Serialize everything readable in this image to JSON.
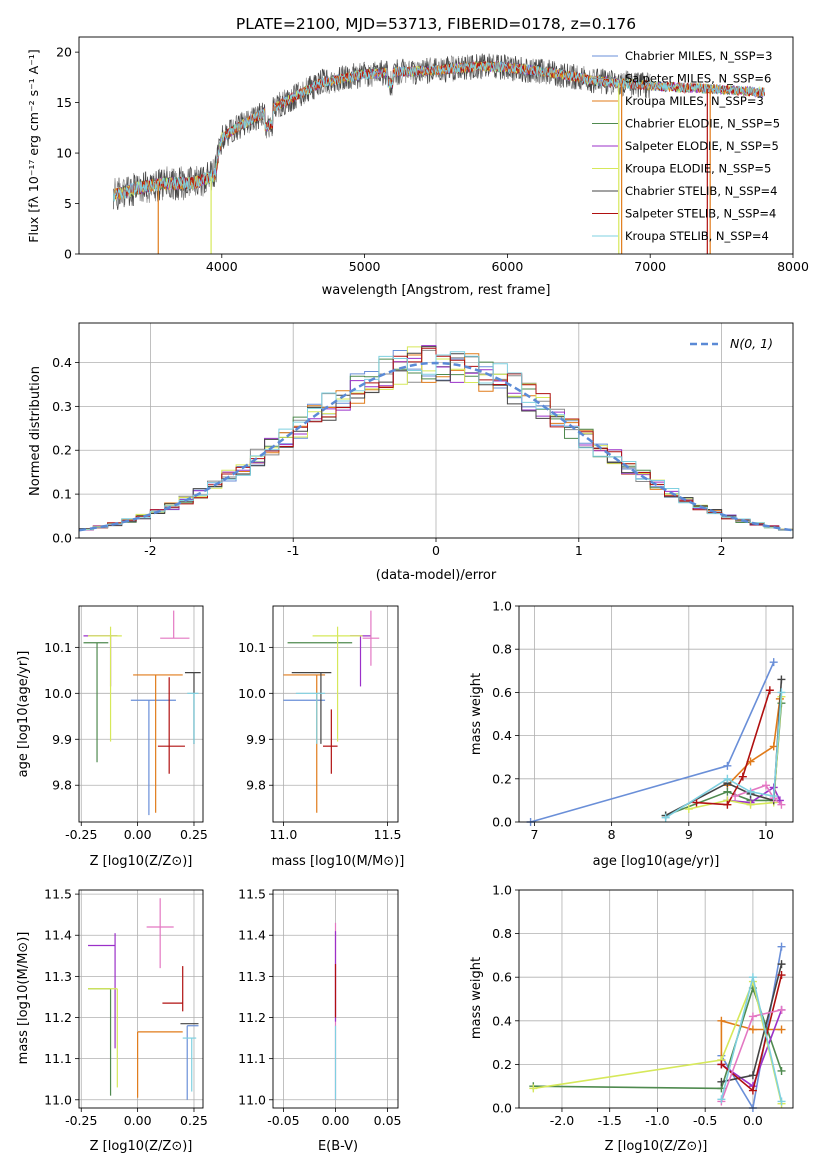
{
  "chart_data": [
    {
      "id": "spectrum",
      "type": "line",
      "title": "PLATE=2100, MJD=53713, FIBERID=0178, z=0.176",
      "xlabel": "wavelength [Angstrom, rest frame]",
      "ylabel": "Flux [fλ 10⁻¹⁷ erg cm⁻² s⁻¹ A⁻¹]",
      "xlim": [
        3000,
        8000
      ],
      "ylim": [
        0,
        21.5
      ],
      "xticks": [
        4000,
        5000,
        6000,
        7000,
        8000
      ],
      "yticks": [
        0,
        5,
        10,
        15,
        20
      ],
      "grid": false,
      "legend_position": "top-right",
      "series": [
        {
          "name": "Chabrier MILES, N_SSP=3",
          "color": "#6a8fd8"
        },
        {
          "name": "Salpeter MILES, N_SSP=6",
          "color": "#8b8b8b"
        },
        {
          "name": "Kroupa MILES, N_SSP=3",
          "color": "#e07b1a"
        },
        {
          "name": "Chabrier ELODIE, N_SSP=5",
          "color": "#4f8a4f"
        },
        {
          "name": "Salpeter ELODIE, N_SSP=5",
          "color": "#9b30c9"
        },
        {
          "name": "Kroupa ELODIE, N_SSP=5",
          "color": "#d6e85a"
        },
        {
          "name": "Chabrier STELIB, N_SSP=4",
          "color": "#444444"
        },
        {
          "name": "Salpeter STELIB, N_SSP=4",
          "color": "#b01010"
        },
        {
          "name": "Kroupa STELIB, N_SSP=4",
          "color": "#7fd0e0"
        }
      ],
      "continuum": {
        "x": [
          3240,
          3400,
          3600,
          3800,
          3950,
          4000,
          4100,
          4300,
          4500,
          4700,
          5000,
          5200,
          5500,
          5800,
          6000,
          6300,
          6600,
          6900,
          7200,
          7500,
          7800
        ],
        "y": [
          5.8,
          6.5,
          7.0,
          7.0,
          7.8,
          11.5,
          12.5,
          14.0,
          15.5,
          17.0,
          17.8,
          18.0,
          18.2,
          18.6,
          18.5,
          18.0,
          17.2,
          16.8,
          16.5,
          16.3,
          16.0
        ]
      },
      "drop_edges": [
        {
          "x": 3555,
          "color": "#e07b1a"
        },
        {
          "x": 3925,
          "color": "#d6e85a"
        },
        {
          "x": 6780,
          "color": "#d6e85a"
        },
        {
          "x": 6800,
          "color": "#e07b1a"
        },
        {
          "x": 7400,
          "color": "#b01010"
        },
        {
          "x": 7420,
          "color": "#e07b1a"
        }
      ]
    },
    {
      "id": "residuals",
      "type": "histogram",
      "xlabel": "(data-model)/error",
      "ylabel": "Normed distribution",
      "xlim": [
        -2.5,
        2.5
      ],
      "ylim": [
        0,
        0.49
      ],
      "xticks": [
        -2,
        -1,
        0,
        1,
        2
      ],
      "yticks": [
        0.0,
        0.1,
        0.2,
        0.3,
        0.4
      ],
      "grid": true,
      "legend_position": "top-right",
      "legend": "N(0, 1)",
      "reference_color": "#5b8ad6",
      "bin_edges_start": -2.5,
      "bin_width": 0.1
    },
    {
      "id": "age_vs_Z",
      "type": "errorbar",
      "xlabel": "Z [log10(Z/Z⊙)]",
      "ylabel": "age  [log10(age/yr)]",
      "xlim": [
        -0.26,
        0.29
      ],
      "ylim": [
        9.72,
        10.19
      ],
      "xticks": [
        -0.25,
        0.0,
        0.25
      ],
      "yticks": [
        9.8,
        9.9,
        10.0,
        10.1
      ],
      "grid": true,
      "points": [
        {
          "x": 0.05,
          "y": 9.985,
          "xerr": [
            0.08,
            0.12
          ],
          "yerr": [
            0.25,
            0.0
          ],
          "color": "#6a8fd8"
        },
        {
          "x": 0.08,
          "y": 10.04,
          "xerr": [
            0.1,
            0.12
          ],
          "yerr": [
            0.3,
            0.0
          ],
          "color": "#e07b1a"
        },
        {
          "x": -0.18,
          "y": 10.11,
          "xerr": [
            0.06,
            0.05
          ],
          "yerr": [
            0.26,
            0.0
          ],
          "color": "#4f8a4f"
        },
        {
          "x": -0.12,
          "y": 10.125,
          "xerr": [
            0.12,
            0.03
          ],
          "yerr": [
            0.11,
            0.0
          ],
          "color": "#9b30c9"
        },
        {
          "x": -0.12,
          "y": 10.125,
          "xerr": [
            0.1,
            0.05
          ],
          "yerr": [
            0.23,
            0.02
          ],
          "color": "#d6e85a"
        },
        {
          "x": 0.25,
          "y": 10.045,
          "xerr": [
            0.04,
            0.03
          ],
          "yerr": [
            0.155,
            0.0
          ],
          "color": "#444444"
        },
        {
          "x": 0.14,
          "y": 9.885,
          "xerr": [
            0.05,
            0.07
          ],
          "yerr": [
            0.06,
            0.15
          ],
          "color": "#b01010"
        },
        {
          "x": 0.16,
          "y": 10.12,
          "xerr": [
            0.06,
            0.07
          ],
          "yerr": [
            0.0,
            0.06
          ],
          "color": "#e377c2"
        },
        {
          "x": 0.25,
          "y": 10.0,
          "xerr": [
            0.03,
            0.02
          ],
          "yerr": [
            0.11,
            0.0
          ],
          "color": "#7fd0e0"
        }
      ]
    },
    {
      "id": "age_vs_mass",
      "type": "errorbar",
      "xlabel": "mass [log10(M/M⊙)]",
      "xlim": [
        10.95,
        11.55
      ],
      "ylim": [
        9.72,
        10.19
      ],
      "xticks": [
        11.0,
        11.5
      ],
      "yticks": [
        9.8,
        9.9,
        10.0,
        10.1
      ],
      "grid": true,
      "points": [
        {
          "x": 11.0,
          "y": 9.985,
          "xerr": [
            0.0,
            0.2
          ],
          "yerr": [
            0.0,
            0.0
          ],
          "color": "#6a8fd8"
        },
        {
          "x": 11.16,
          "y": 10.04,
          "xerr": [
            0.16,
            0.04
          ],
          "yerr": [
            0.3,
            0.0
          ],
          "color": "#e07b1a"
        },
        {
          "x": 11.2,
          "y": 10.11,
          "xerr": [
            0.18,
            0.13
          ],
          "yerr": [
            0.0,
            0.0
          ],
          "color": "#4f8a4f"
        },
        {
          "x": 11.37,
          "y": 10.125,
          "xerr": [
            0.05,
            0.05
          ],
          "yerr": [
            0.11,
            0.0
          ],
          "color": "#9b30c9"
        },
        {
          "x": 11.26,
          "y": 10.125,
          "xerr": [
            0.12,
            0.12
          ],
          "yerr": [
            0.23,
            0.02
          ],
          "color": "#d6e85a"
        },
        {
          "x": 11.18,
          "y": 10.045,
          "xerr": [
            0.14,
            0.05
          ],
          "yerr": [
            0.155,
            0.0
          ],
          "color": "#444444"
        },
        {
          "x": 11.23,
          "y": 9.885,
          "xerr": [
            0.04,
            0.03
          ],
          "yerr": [
            0.06,
            0.08
          ],
          "color": "#b01010"
        },
        {
          "x": 11.42,
          "y": 10.12,
          "xerr": [
            0.04,
            0.04
          ],
          "yerr": [
            0.06,
            0.06
          ],
          "color": "#e377c2"
        },
        {
          "x": 11.16,
          "y": 10.0,
          "xerr": [
            0.1,
            0.04
          ],
          "yerr": [
            0.11,
            0.0
          ],
          "color": "#7fd0e0"
        }
      ]
    },
    {
      "id": "massweight_vs_age",
      "type": "line",
      "xlabel": "age  [log10(age/yr)]",
      "ylabel": "mass weight",
      "xlim": [
        6.8,
        10.35
      ],
      "ylim": [
        0,
        1.0
      ],
      "xticks": [
        7,
        8,
        9,
        10
      ],
      "yticks": [
        0.0,
        0.2,
        0.4,
        0.6,
        0.8,
        1.0
      ],
      "grid": true,
      "series": [
        {
          "color": "#6a8fd8",
          "x": [
            6.95,
            9.5,
            10.1
          ],
          "y": [
            0.0,
            0.26,
            0.74
          ]
        },
        {
          "color": "#e07b1a",
          "x": [
            9.5,
            9.8,
            10.1,
            10.18
          ],
          "y": [
            0.17,
            0.28,
            0.35,
            0.57
          ]
        },
        {
          "color": "#4f8a4f",
          "x": [
            8.7,
            9.5,
            9.8,
            10.1,
            10.2
          ],
          "y": [
            0.03,
            0.14,
            0.1,
            0.1,
            0.55
          ]
        },
        {
          "color": "#9b30c9",
          "x": [
            9.5,
            9.8,
            10.1,
            10.18
          ],
          "y": [
            0.1,
            0.09,
            0.16,
            0.1
          ]
        },
        {
          "color": "#d6e85a",
          "x": [
            9.0,
            9.5,
            9.8,
            10.1,
            10.2
          ],
          "y": [
            0.06,
            0.1,
            0.08,
            0.09,
            0.58
          ]
        },
        {
          "color": "#444444",
          "x": [
            8.7,
            9.5,
            9.8,
            10.1,
            10.2
          ],
          "y": [
            0.03,
            0.18,
            0.13,
            0.1,
            0.66
          ]
        },
        {
          "color": "#b01010",
          "x": [
            9.1,
            9.5,
            9.7,
            10.05
          ],
          "y": [
            0.09,
            0.08,
            0.21,
            0.61
          ]
        },
        {
          "color": "#e377c2",
          "x": [
            9.6,
            10.0,
            10.1,
            10.2
          ],
          "y": [
            0.12,
            0.17,
            0.11,
            0.08
          ]
        },
        {
          "color": "#7fd0e0",
          "x": [
            8.7,
            9.5,
            9.8,
            10.1,
            10.2
          ],
          "y": [
            0.02,
            0.2,
            0.14,
            0.12,
            0.6
          ]
        }
      ]
    },
    {
      "id": "mass_vs_Z",
      "type": "errorbar",
      "xlabel": "Z [log10(Z/Z⊙)]",
      "ylabel": "mass [log10(M/M⊙)]",
      "xlim": [
        -0.26,
        0.29
      ],
      "ylim": [
        10.98,
        11.51
      ],
      "xticks": [
        -0.25,
        0.0,
        0.25
      ],
      "yticks": [
        11.0,
        11.1,
        11.2,
        11.3,
        11.4,
        11.5
      ],
      "grid": true,
      "points": [
        {
          "x": 0.22,
          "y": 11.18,
          "xerr": [
            0.0,
            0.05
          ],
          "yerr": [
            0.18,
            0.0
          ],
          "color": "#6a8fd8"
        },
        {
          "x": 0.0,
          "y": 11.165,
          "xerr": [
            0.0,
            0.2
          ],
          "yerr": [
            0.16,
            0.0
          ],
          "color": "#e07b1a"
        },
        {
          "x": -0.12,
          "y": 11.27,
          "xerr": [
            0.1,
            0.0
          ],
          "yerr": [
            0.26,
            0.0
          ],
          "color": "#4f8a4f"
        },
        {
          "x": -0.1,
          "y": 11.375,
          "xerr": [
            0.12,
            0.0
          ],
          "yerr": [
            0.25,
            0.03
          ],
          "color": "#9b30c9"
        },
        {
          "x": -0.09,
          "y": 11.27,
          "xerr": [
            0.13,
            0.0
          ],
          "yerr": [
            0.24,
            0.0
          ],
          "color": "#d6e85a"
        },
        {
          "x": 0.24,
          "y": 11.185,
          "xerr": [
            0.05,
            0.03
          ],
          "yerr": [
            0.0,
            0.0
          ],
          "color": "#444444"
        },
        {
          "x": 0.2,
          "y": 11.235,
          "xerr": [
            0.09,
            0.0
          ],
          "yerr": [
            0.02,
            0.09
          ],
          "color": "#b01010"
        },
        {
          "x": 0.1,
          "y": 11.42,
          "xerr": [
            0.06,
            0.06
          ],
          "yerr": [
            0.1,
            0.07
          ],
          "color": "#e377c2"
        },
        {
          "x": 0.24,
          "y": 11.15,
          "xerr": [
            0.04,
            0.02
          ],
          "yerr": [
            0.13,
            0.0
          ],
          "color": "#7fd0e0"
        }
      ]
    },
    {
      "id": "mass_vs_EBV",
      "type": "errorbar",
      "xlabel": "E(B-V)",
      "xlim": [
        -0.06,
        0.06
      ],
      "ylim": [
        10.98,
        11.51
      ],
      "xticks": [
        -0.05,
        0.0,
        0.05
      ],
      "yticks": [
        11.0,
        11.1,
        11.2,
        11.3,
        11.4,
        11.5
      ],
      "grid": true,
      "points": [
        {
          "x": 0.0,
          "y": 11.18,
          "yerr": [
            0.18,
            0.25
          ],
          "color": "#e377c2"
        },
        {
          "x": 0.0,
          "y": 11.25,
          "yerr": [
            0.06,
            0.16
          ],
          "color": "#9b30c9"
        },
        {
          "x": 0.0,
          "y": 11.25,
          "yerr": [
            0.05,
            0.08
          ],
          "color": "#b01010"
        },
        {
          "x": 0.0,
          "y": 11.1,
          "yerr": [
            0.1,
            0.08
          ],
          "color": "#7fd0e0"
        }
      ]
    },
    {
      "id": "massweight_vs_Z",
      "type": "line",
      "xlabel": "Z [log10(Z/Z⊙)]",
      "ylabel": "mass weight",
      "xlim": [
        -2.45,
        0.42
      ],
      "ylim": [
        0,
        1.0
      ],
      "xticks": [
        -2.0,
        -1.5,
        -1.0,
        -0.5,
        0.0
      ],
      "yticks": [
        0.0,
        0.2,
        0.4,
        0.6,
        0.8,
        1.0
      ],
      "grid": true,
      "series": [
        {
          "color": "#6a8fd8",
          "x": [
            -0.33,
            0.0,
            0.3
          ],
          "y": [
            0.24,
            0.0,
            0.74
          ]
        },
        {
          "color": "#e07b1a",
          "x": [
            -0.33,
            -0.33,
            0.0,
            0.3
          ],
          "y": [
            0.22,
            0.4,
            0.36,
            0.36
          ]
        },
        {
          "color": "#4f8a4f",
          "x": [
            -2.3,
            -0.33,
            0.0,
            0.3
          ],
          "y": [
            0.1,
            0.09,
            0.55,
            0.17
          ]
        },
        {
          "color": "#9b30c9",
          "x": [
            -0.33,
            0.0,
            0.3
          ],
          "y": [
            0.2,
            0.1,
            0.45
          ]
        },
        {
          "color": "#d6e85a",
          "x": [
            -2.3,
            -0.33,
            0.0,
            0.3
          ],
          "y": [
            0.09,
            0.22,
            0.58,
            0.02
          ]
        },
        {
          "color": "#444444",
          "x": [
            -0.33,
            0.0,
            0.3
          ],
          "y": [
            0.12,
            0.15,
            0.66
          ]
        },
        {
          "color": "#b01010",
          "x": [
            -0.33,
            0.0,
            0.3
          ],
          "y": [
            0.2,
            0.08,
            0.61
          ]
        },
        {
          "color": "#e377c2",
          "x": [
            -0.33,
            0.0,
            0.3
          ],
          "y": [
            0.03,
            0.42,
            0.45
          ]
        },
        {
          "color": "#7fd0e0",
          "x": [
            -0.33,
            0.0,
            0.3
          ],
          "y": [
            0.04,
            0.6,
            0.03
          ]
        }
      ]
    }
  ]
}
